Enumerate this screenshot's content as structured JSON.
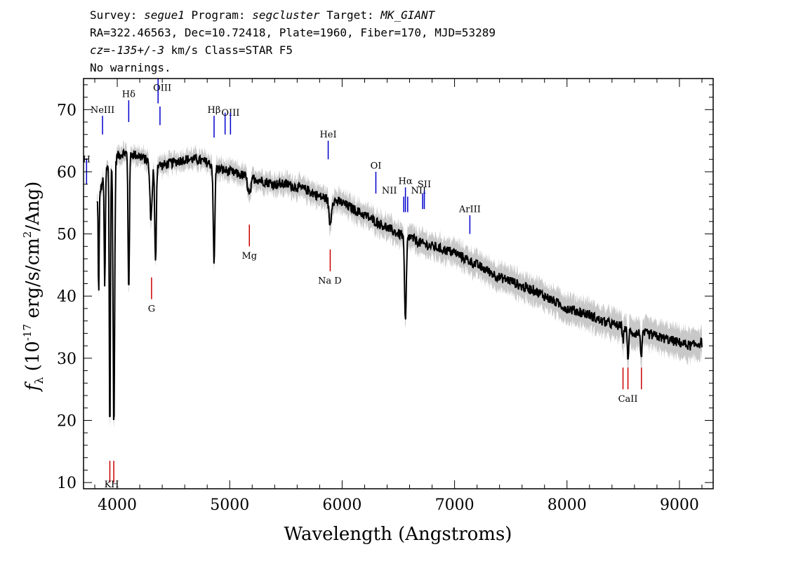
{
  "header": {
    "l1_survey_key": "Survey: ",
    "l1_survey": "segue1",
    "l1_program_key": " Program: ",
    "l1_program": "segcluster",
    "l1_target_key": " Target: ",
    "l1_target": "MK_GIANT",
    "line2": "RA=322.46563, Dec=10.72418, Plate=1960, Fiber=170, MJD=53289",
    "l3_cz_key": "cz=",
    "l3_cz": "-135+/-3",
    "l3_rest": " km/s Class=STAR F5",
    "line4": "No warnings."
  },
  "chart_data": {
    "type": "line",
    "xlabel": "Wavelength (Angstroms)",
    "ylabel": "f_λ (10^-17 erg/s/cm^2/Ang)",
    "ylabel_parts": {
      "f": "f",
      "lambda": "λ",
      "mid": " (10",
      "exp": "-17",
      "mid2": " erg/s/cm",
      "exp2": "2",
      "tail": "/Ang)"
    },
    "xlim": [
      3700,
      9300
    ],
    "ylim": [
      9,
      75
    ],
    "xticks": [
      4000,
      5000,
      6000,
      7000,
      8000,
      9000
    ],
    "yticks": [
      10,
      20,
      30,
      40,
      50,
      60,
      70
    ],
    "colors": {
      "spectrum": "#000000",
      "error_band": "#c8c8c8",
      "emission": "#0000cc",
      "absorption": "#cc0000"
    },
    "continuum": [
      [
        3820,
        55
      ],
      [
        3850,
        57
      ],
      [
        3880,
        59
      ],
      [
        3920,
        61
      ],
      [
        3960,
        62
      ],
      [
        4000,
        62.5
      ],
      [
        4050,
        63
      ],
      [
        4100,
        63
      ],
      [
        4200,
        62.5
      ],
      [
        4300,
        61.5
      ],
      [
        4400,
        61
      ],
      [
        4500,
        61.5
      ],
      [
        4600,
        62
      ],
      [
        4700,
        62
      ],
      [
        4800,
        61.5
      ],
      [
        4900,
        60.5
      ],
      [
        5000,
        60
      ],
      [
        5100,
        59.5
      ],
      [
        5200,
        59
      ],
      [
        5300,
        58.5
      ],
      [
        5400,
        58
      ],
      [
        5500,
        58
      ],
      [
        5600,
        57.5
      ],
      [
        5700,
        57
      ],
      [
        5800,
        56
      ],
      [
        5900,
        55.5
      ],
      [
        6000,
        55
      ],
      [
        6100,
        54
      ],
      [
        6200,
        53
      ],
      [
        6300,
        52
      ],
      [
        6400,
        51
      ],
      [
        6500,
        50
      ],
      [
        6600,
        49.5
      ],
      [
        6700,
        48.5
      ],
      [
        6800,
        48
      ],
      [
        6900,
        47.5
      ],
      [
        7000,
        47
      ],
      [
        7100,
        46
      ],
      [
        7200,
        45
      ],
      [
        7300,
        44
      ],
      [
        7400,
        43
      ],
      [
        7500,
        42.5
      ],
      [
        7600,
        41.5
      ],
      [
        7700,
        41
      ],
      [
        7800,
        40
      ],
      [
        7900,
        39
      ],
      [
        8000,
        38
      ],
      [
        8100,
        37.5
      ],
      [
        8200,
        37
      ],
      [
        8300,
        36
      ],
      [
        8400,
        35.5
      ],
      [
        8500,
        35
      ],
      [
        8600,
        34
      ],
      [
        8700,
        34
      ],
      [
        8800,
        33.5
      ],
      [
        8900,
        33
      ],
      [
        9000,
        32.5
      ],
      [
        9100,
        32
      ],
      [
        9200,
        32.5
      ]
    ],
    "absorption_features": [
      {
        "center": 3835,
        "depth": 16,
        "width": 4
      },
      {
        "center": 3889,
        "depth": 18,
        "width": 5
      },
      {
        "center": 3934,
        "depth": 44,
        "width": 5
      },
      {
        "center": 3970,
        "depth": 43,
        "width": 7
      },
      {
        "center": 4102,
        "depth": 22,
        "width": 6
      },
      {
        "center": 4300,
        "depth": 9,
        "width": 10
      },
      {
        "center": 4340,
        "depth": 16,
        "width": 7
      },
      {
        "center": 4861,
        "depth": 16,
        "width": 7
      },
      {
        "center": 5175,
        "depth": 3,
        "width": 14
      },
      {
        "center": 5893,
        "depth": 4,
        "width": 10
      },
      {
        "center": 6563,
        "depth": 14,
        "width": 8
      },
      {
        "center": 8498,
        "depth": 2,
        "width": 5
      },
      {
        "center": 8542,
        "depth": 5,
        "width": 6
      },
      {
        "center": 8662,
        "depth": 4,
        "width": 6
      }
    ],
    "emission_lines": [
      {
        "label": "H",
        "x": 3727,
        "y0": 58,
        "y1": 62,
        "lx": 3727,
        "ly": 61.5
      },
      {
        "label": "NeIII",
        "x": 3869,
        "y0": 66,
        "y1": 69,
        "lx": 3869,
        "ly": 69.5
      },
      {
        "label": "Hδ",
        "x": 4102,
        "y0": 68,
        "y1": 71.5,
        "lx": 4102,
        "ly": 72
      },
      {
        "label": "OIII",
        "x": 4363,
        "y0": 71,
        "y1": 75,
        "lx": 4400,
        "ly": 73
      },
      {
        "label": "",
        "x": 4380,
        "y0": 67.5,
        "y1": 70.5,
        "lx": 0,
        "ly": 0
      },
      {
        "label": "Hβ",
        "x": 4861,
        "y0": 65.5,
        "y1": 69,
        "lx": 4861,
        "ly": 69.5
      },
      {
        "label": "OIII",
        "x": 4959,
        "y0": 66,
        "y1": 69.5,
        "lx": 5007,
        "ly": 69
      },
      {
        "label": "",
        "x": 5007,
        "y0": 66,
        "y1": 69.5,
        "lx": 0,
        "ly": 0
      },
      {
        "label": "HeI",
        "x": 5876,
        "y0": 62,
        "y1": 65,
        "lx": 5876,
        "ly": 65.5
      },
      {
        "label": "OI",
        "x": 6300,
        "y0": 56.5,
        "y1": 60,
        "lx": 6300,
        "ly": 60.5
      },
      {
        "label": "NII",
        "x": 6548,
        "y0": 53.5,
        "y1": 56,
        "lx": 6420,
        "ly": 56.5
      },
      {
        "label": "Hα",
        "x": 6563,
        "y0": 53.5,
        "y1": 57.5,
        "lx": 6563,
        "ly": 58
      },
      {
        "label": "",
        "x": 6583,
        "y0": 53.5,
        "y1": 56,
        "lx": 0,
        "ly": 0
      },
      {
        "label": "NII",
        "x": 6716,
        "y0": 54,
        "y1": 56.5,
        "lx": 6680,
        "ly": 56.5
      },
      {
        "label": "SII",
        "x": 6731,
        "y0": 54,
        "y1": 57,
        "lx": 6731,
        "ly": 57.5
      },
      {
        "label": "ArIII",
        "x": 7136,
        "y0": 50,
        "y1": 53,
        "lx": 7136,
        "ly": 53.5
      }
    ],
    "absorption_lines": [
      {
        "label": "K",
        "x": 3934,
        "y0": 10,
        "y1": 13.5,
        "lx": 3915,
        "ly": 9.2
      },
      {
        "label": "H",
        "x": 3969,
        "y0": 10,
        "y1": 13.5,
        "lx": 3980,
        "ly": 9.2
      },
      {
        "label": "G",
        "x": 4305,
        "y0": 39.5,
        "y1": 43,
        "lx": 4305,
        "ly": 37.5
      },
      {
        "label": "Mg",
        "x": 5175,
        "y0": 48,
        "y1": 51.5,
        "lx": 5175,
        "ly": 46
      },
      {
        "label": "Na D",
        "x": 5894,
        "y0": 44,
        "y1": 47.5,
        "lx": 5890,
        "ly": 42
      },
      {
        "label": "CaII",
        "x": 8498,
        "y0": 25,
        "y1": 28.5,
        "lx": 8542,
        "ly": 23
      },
      {
        "label": "",
        "x": 8542,
        "y0": 25,
        "y1": 28.5,
        "lx": 0,
        "ly": 0
      },
      {
        "label": "",
        "x": 8662,
        "y0": 25,
        "y1": 28.5,
        "lx": 0,
        "ly": 0
      }
    ]
  }
}
